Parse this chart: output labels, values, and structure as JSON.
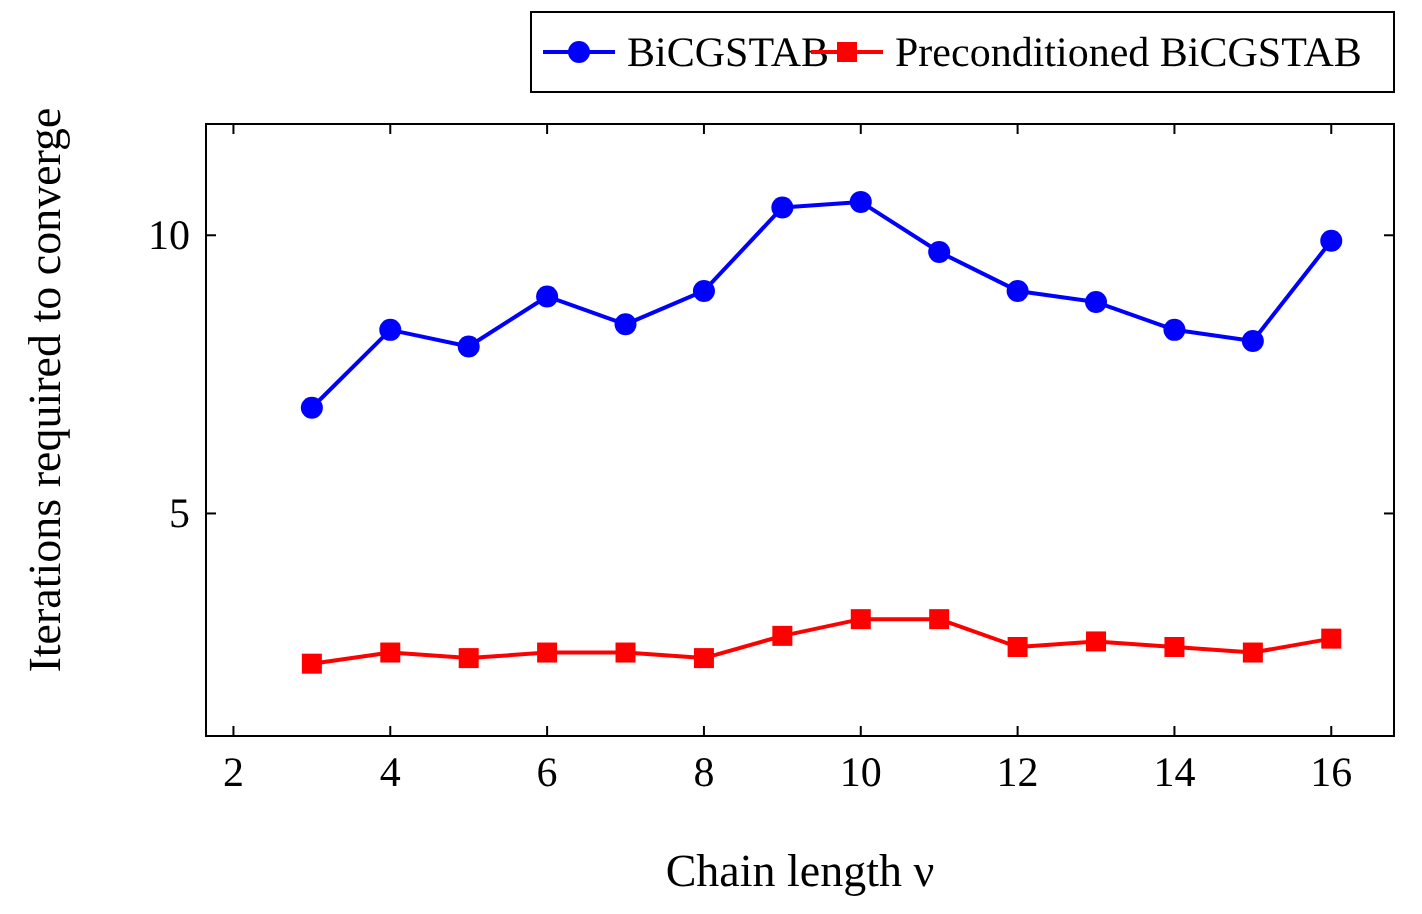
{
  "chart_data": {
    "type": "line",
    "xlabel": "Chain length ν",
    "ylabel": "Iterations required to converge",
    "x": [
      3,
      4,
      5,
      6,
      7,
      8,
      9,
      10,
      11,
      12,
      13,
      14,
      15,
      16
    ],
    "series": [
      {
        "name": "BiCGSTAB",
        "color": "#0000ff",
        "marker": "circle",
        "values": [
          6.9,
          8.3,
          8.0,
          8.9,
          8.4,
          9.0,
          10.5,
          10.6,
          9.7,
          9.0,
          8.8,
          8.3,
          8.1,
          9.9
        ]
      },
      {
        "name": "Preconditioned BiCGSTAB",
        "color": "#ff0000",
        "marker": "square",
        "values": [
          2.3,
          2.5,
          2.4,
          2.5,
          2.5,
          2.4,
          2.8,
          3.1,
          3.1,
          2.6,
          2.7,
          2.6,
          2.5,
          2.75
        ]
      }
    ],
    "xlim": [
      1.65,
      16.8
    ],
    "ylim": [
      1,
      12
    ],
    "xticks": [
      2,
      4,
      6,
      8,
      10,
      12,
      14,
      16
    ],
    "yticks": [
      5,
      10
    ],
    "grid": false,
    "legend": "top right",
    "line_style": "solid"
  }
}
